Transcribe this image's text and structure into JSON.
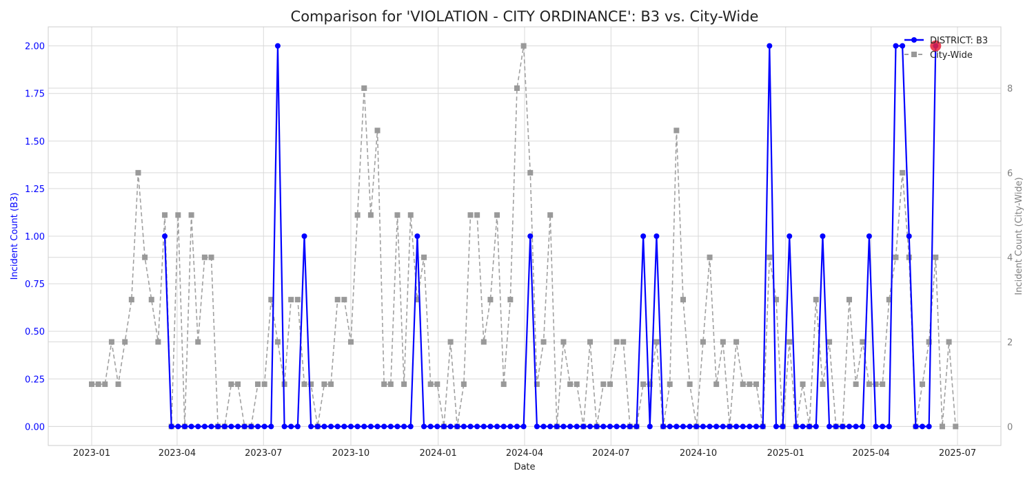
{
  "chart_data": {
    "type": "line",
    "title": "Comparison for 'VIOLATION - CITY ORDINANCE': B3 vs. City-Wide",
    "xlabel": "Date",
    "ylabel_left": "Incident Count (B3)",
    "ylabel_right": "Incident Count (City-Wide)",
    "grid": true,
    "legend_position": "top-right",
    "x_ticks": [
      "2023-01",
      "2023-04",
      "2023-07",
      "2023-10",
      "2024-01",
      "2024-04",
      "2024-07",
      "2024-10",
      "2025-01",
      "2025-04",
      "2025-07"
    ],
    "y_left_ticks": [
      "0.00",
      "0.25",
      "0.50",
      "0.75",
      "1.00",
      "1.25",
      "1.50",
      "1.75",
      "2.00"
    ],
    "y_right_ticks": [
      "0",
      "2",
      "4",
      "6",
      "8"
    ],
    "ylim_left": [
      -0.1,
      2.1
    ],
    "ylim_right": [
      -0.45,
      9.45
    ],
    "colors": {
      "district": "#0000ff",
      "city": "#a0a0a0",
      "highlight": "#e8223a",
      "left_axis": "#0000ff",
      "right_axis": "#808080"
    },
    "series": [
      {
        "name": "DISTRICT: B3",
        "axis": "left",
        "style": "solid-circle",
        "points": [
          [
            "2023-03-19",
            1
          ],
          [
            "2023-03-26",
            0
          ],
          [
            "2023-04-02",
            0
          ],
          [
            "2023-04-09",
            0
          ],
          [
            "2023-04-16",
            0
          ],
          [
            "2023-04-23",
            0
          ],
          [
            "2023-04-30",
            0
          ],
          [
            "2023-05-07",
            0
          ],
          [
            "2023-05-14",
            0
          ],
          [
            "2023-05-21",
            0
          ],
          [
            "2023-05-28",
            0
          ],
          [
            "2023-06-04",
            0
          ],
          [
            "2023-06-11",
            0
          ],
          [
            "2023-06-18",
            0
          ],
          [
            "2023-06-25",
            0
          ],
          [
            "2023-07-02",
            0
          ],
          [
            "2023-07-09",
            0
          ],
          [
            "2023-07-16",
            2
          ],
          [
            "2023-07-23",
            0
          ],
          [
            "2023-07-30",
            0
          ],
          [
            "2023-08-06",
            0
          ],
          [
            "2023-08-13",
            1
          ],
          [
            "2023-08-20",
            0
          ],
          [
            "2023-08-27",
            0
          ],
          [
            "2023-09-03",
            0
          ],
          [
            "2023-09-10",
            0
          ],
          [
            "2023-09-17",
            0
          ],
          [
            "2023-09-24",
            0
          ],
          [
            "2023-10-01",
            0
          ],
          [
            "2023-10-08",
            0
          ],
          [
            "2023-10-15",
            0
          ],
          [
            "2023-10-22",
            0
          ],
          [
            "2023-10-29",
            0
          ],
          [
            "2023-11-05",
            0
          ],
          [
            "2023-11-12",
            0
          ],
          [
            "2023-11-19",
            0
          ],
          [
            "2023-11-26",
            0
          ],
          [
            "2023-12-03",
            0
          ],
          [
            "2023-12-10",
            1
          ],
          [
            "2023-12-17",
            0
          ],
          [
            "2023-12-24",
            0
          ],
          [
            "2023-12-31",
            0
          ],
          [
            "2024-01-07",
            0
          ],
          [
            "2024-01-14",
            0
          ],
          [
            "2024-01-21",
            0
          ],
          [
            "2024-01-28",
            0
          ],
          [
            "2024-02-04",
            0
          ],
          [
            "2024-02-11",
            0
          ],
          [
            "2024-02-18",
            0
          ],
          [
            "2024-02-25",
            0
          ],
          [
            "2024-03-03",
            0
          ],
          [
            "2024-03-10",
            0
          ],
          [
            "2024-03-17",
            0
          ],
          [
            "2024-03-24",
            0
          ],
          [
            "2024-03-31",
            0
          ],
          [
            "2024-04-07",
            1
          ],
          [
            "2024-04-14",
            0
          ],
          [
            "2024-04-21",
            0
          ],
          [
            "2024-04-28",
            0
          ],
          [
            "2024-05-05",
            0
          ],
          [
            "2024-05-12",
            0
          ],
          [
            "2024-05-19",
            0
          ],
          [
            "2024-05-26",
            0
          ],
          [
            "2024-06-02",
            0
          ],
          [
            "2024-06-09",
            0
          ],
          [
            "2024-06-16",
            0
          ],
          [
            "2024-06-23",
            0
          ],
          [
            "2024-06-30",
            0
          ],
          [
            "2024-07-07",
            0
          ],
          [
            "2024-07-14",
            0
          ],
          [
            "2024-07-21",
            0
          ],
          [
            "2024-07-28",
            0
          ],
          [
            "2024-08-04",
            1
          ],
          [
            "2024-08-11",
            0
          ],
          [
            "2024-08-18",
            1
          ],
          [
            "2024-08-25",
            0
          ],
          [
            "2024-09-01",
            0
          ],
          [
            "2024-09-08",
            0
          ],
          [
            "2024-09-15",
            0
          ],
          [
            "2024-09-22",
            0
          ],
          [
            "2024-09-29",
            0
          ],
          [
            "2024-10-06",
            0
          ],
          [
            "2024-10-13",
            0
          ],
          [
            "2024-10-20",
            0
          ],
          [
            "2024-10-27",
            0
          ],
          [
            "2024-11-03",
            0
          ],
          [
            "2024-11-10",
            0
          ],
          [
            "2024-11-17",
            0
          ],
          [
            "2024-11-24",
            0
          ],
          [
            "2024-12-01",
            0
          ],
          [
            "2024-12-08",
            0
          ],
          [
            "2024-12-15",
            2
          ],
          [
            "2024-12-22",
            0
          ],
          [
            "2024-12-29",
            0
          ],
          [
            "2025-01-05",
            1
          ],
          [
            "2025-01-12",
            0
          ],
          [
            "2025-01-19",
            0
          ],
          [
            "2025-01-26",
            0
          ],
          [
            "2025-02-02",
            0
          ],
          [
            "2025-02-09",
            1
          ],
          [
            "2025-02-16",
            0
          ],
          [
            "2025-02-23",
            0
          ],
          [
            "2025-03-02",
            0
          ],
          [
            "2025-03-09",
            0
          ],
          [
            "2025-03-16",
            0
          ],
          [
            "2025-03-23",
            0
          ],
          [
            "2025-03-30",
            1
          ],
          [
            "2025-04-06",
            0
          ],
          [
            "2025-04-13",
            0
          ],
          [
            "2025-04-20",
            0
          ],
          [
            "2025-04-27",
            2
          ],
          [
            "2025-05-04",
            2
          ],
          [
            "2025-05-11",
            1
          ],
          [
            "2025-05-18",
            0
          ],
          [
            "2025-05-25",
            0
          ],
          [
            "2025-06-01",
            0
          ],
          [
            "2025-06-08",
            2
          ]
        ]
      },
      {
        "name": "City-Wide",
        "axis": "right",
        "style": "dashed-square",
        "points": [
          [
            "2023-01-01",
            1
          ],
          [
            "2023-01-08",
            1
          ],
          [
            "2023-01-15",
            1
          ],
          [
            "2023-01-22",
            2
          ],
          [
            "2023-01-29",
            1
          ],
          [
            "2023-02-05",
            2
          ],
          [
            "2023-02-12",
            3
          ],
          [
            "2023-02-19",
            6
          ],
          [
            "2023-02-26",
            4
          ],
          [
            "2023-03-05",
            3
          ],
          [
            "2023-03-12",
            2
          ],
          [
            "2023-03-19",
            5
          ],
          [
            "2023-03-26",
            0
          ],
          [
            "2023-04-02",
            5
          ],
          [
            "2023-04-09",
            0
          ],
          [
            "2023-04-16",
            5
          ],
          [
            "2023-04-23",
            2
          ],
          [
            "2023-04-30",
            4
          ],
          [
            "2023-05-07",
            4
          ],
          [
            "2023-05-14",
            0
          ],
          [
            "2023-05-21",
            0
          ],
          [
            "2023-05-28",
            1
          ],
          [
            "2023-06-04",
            1
          ],
          [
            "2023-06-11",
            0
          ],
          [
            "2023-06-18",
            0
          ],
          [
            "2023-06-25",
            1
          ],
          [
            "2023-07-02",
            1
          ],
          [
            "2023-07-09",
            3
          ],
          [
            "2023-07-16",
            2
          ],
          [
            "2023-07-23",
            1
          ],
          [
            "2023-07-30",
            3
          ],
          [
            "2023-08-06",
            3
          ],
          [
            "2023-08-13",
            1
          ],
          [
            "2023-08-20",
            1
          ],
          [
            "2023-08-27",
            0
          ],
          [
            "2023-09-03",
            1
          ],
          [
            "2023-09-10",
            1
          ],
          [
            "2023-09-17",
            3
          ],
          [
            "2023-09-24",
            3
          ],
          [
            "2023-10-01",
            2
          ],
          [
            "2023-10-08",
            5
          ],
          [
            "2023-10-15",
            8
          ],
          [
            "2023-10-22",
            5
          ],
          [
            "2023-10-29",
            7
          ],
          [
            "2023-11-05",
            1
          ],
          [
            "2023-11-12",
            1
          ],
          [
            "2023-11-19",
            5
          ],
          [
            "2023-11-26",
            1
          ],
          [
            "2023-12-03",
            5
          ],
          [
            "2023-12-10",
            3
          ],
          [
            "2023-12-17",
            4
          ],
          [
            "2023-12-24",
            1
          ],
          [
            "2023-12-31",
            1
          ],
          [
            "2024-01-07",
            0
          ],
          [
            "2024-01-14",
            2
          ],
          [
            "2024-01-21",
            0
          ],
          [
            "2024-01-28",
            1
          ],
          [
            "2024-02-04",
            5
          ],
          [
            "2024-02-11",
            5
          ],
          [
            "2024-02-18",
            2
          ],
          [
            "2024-02-25",
            3
          ],
          [
            "2024-03-03",
            5
          ],
          [
            "2024-03-10",
            1
          ],
          [
            "2024-03-17",
            3
          ],
          [
            "2024-03-24",
            8
          ],
          [
            "2024-03-31",
            9
          ],
          [
            "2024-04-07",
            6
          ],
          [
            "2024-04-14",
            1
          ],
          [
            "2024-04-21",
            2
          ],
          [
            "2024-04-28",
            5
          ],
          [
            "2024-05-05",
            0
          ],
          [
            "2024-05-12",
            2
          ],
          [
            "2024-05-19",
            1
          ],
          [
            "2024-05-26",
            1
          ],
          [
            "2024-06-02",
            0
          ],
          [
            "2024-06-09",
            2
          ],
          [
            "2024-06-16",
            0
          ],
          [
            "2024-06-23",
            1
          ],
          [
            "2024-06-30",
            1
          ],
          [
            "2024-07-07",
            2
          ],
          [
            "2024-07-14",
            2
          ],
          [
            "2024-07-21",
            0
          ],
          [
            "2024-07-28",
            0
          ],
          [
            "2024-08-04",
            1
          ],
          [
            "2024-08-11",
            1
          ],
          [
            "2024-08-18",
            2
          ],
          [
            "2024-08-25",
            0
          ],
          [
            "2024-09-01",
            1
          ],
          [
            "2024-09-08",
            7
          ],
          [
            "2024-09-15",
            3
          ],
          [
            "2024-09-22",
            1
          ],
          [
            "2024-09-29",
            0
          ],
          [
            "2024-10-06",
            2
          ],
          [
            "2024-10-13",
            4
          ],
          [
            "2024-10-20",
            1
          ],
          [
            "2024-10-27",
            2
          ],
          [
            "2024-11-03",
            0
          ],
          [
            "2024-11-10",
            2
          ],
          [
            "2024-11-17",
            1
          ],
          [
            "2024-11-24",
            1
          ],
          [
            "2024-12-01",
            1
          ],
          [
            "2024-12-08",
            0
          ],
          [
            "2024-12-15",
            4
          ],
          [
            "2024-12-22",
            3
          ],
          [
            "2024-12-29",
            0
          ],
          [
            "2025-01-05",
            2
          ],
          [
            "2025-01-12",
            0
          ],
          [
            "2025-01-19",
            1
          ],
          [
            "2025-01-26",
            0
          ],
          [
            "2025-02-02",
            3
          ],
          [
            "2025-02-09",
            1
          ],
          [
            "2025-02-16",
            2
          ],
          [
            "2025-02-23",
            0
          ],
          [
            "2025-03-02",
            0
          ],
          [
            "2025-03-09",
            3
          ],
          [
            "2025-03-16",
            1
          ],
          [
            "2025-03-23",
            2
          ],
          [
            "2025-03-30",
            1
          ],
          [
            "2025-04-06",
            1
          ],
          [
            "2025-04-13",
            1
          ],
          [
            "2025-04-20",
            3
          ],
          [
            "2025-04-27",
            4
          ],
          [
            "2025-05-04",
            6
          ],
          [
            "2025-05-11",
            4
          ],
          [
            "2025-05-18",
            0
          ],
          [
            "2025-05-25",
            1
          ],
          [
            "2025-06-01",
            2
          ],
          [
            "2025-06-08",
            4
          ],
          [
            "2025-06-15",
            0
          ],
          [
            "2025-06-22",
            2
          ],
          [
            "2025-06-29",
            0
          ]
        ]
      }
    ],
    "highlight_point": {
      "x": "2025-06-08",
      "y": 2,
      "series": "DISTRICT: B3"
    }
  }
}
